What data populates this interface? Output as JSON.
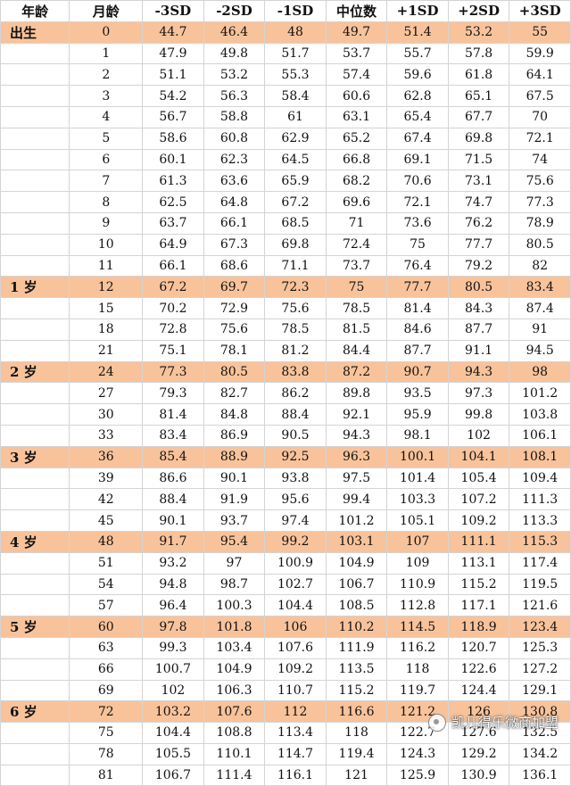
{
  "headers": [
    "年龄",
    "月龄",
    "-3SD",
    "-2SD",
    "-1SD",
    "中位数",
    "+1SD",
    "+2SD",
    "+3SD"
  ],
  "rows": [
    {
      "age": "出生",
      "month": "0",
      "values": [
        "44.7",
        "46.4",
        "48",
        "49.7",
        "51.4",
        "53.2",
        "55"
      ],
      "highlight": true
    },
    {
      "age": "",
      "month": "1",
      "values": [
        "47.9",
        "49.8",
        "51.7",
        "53.7",
        "55.7",
        "57.8",
        "59.9"
      ],
      "highlight": false
    },
    {
      "age": "",
      "month": "2",
      "values": [
        "51.1",
        "53.2",
        "55.3",
        "57.4",
        "59.6",
        "61.8",
        "64.1"
      ],
      "highlight": false
    },
    {
      "age": "",
      "month": "3",
      "values": [
        "54.2",
        "56.3",
        "58.4",
        "60.6",
        "62.8",
        "65.1",
        "67.5"
      ],
      "highlight": false
    },
    {
      "age": "",
      "month": "4",
      "values": [
        "56.7",
        "58.8",
        "61",
        "63.1",
        "65.4",
        "67.7",
        "70"
      ],
      "highlight": false
    },
    {
      "age": "",
      "month": "5",
      "values": [
        "58.6",
        "60.8",
        "62.9",
        "65.2",
        "67.4",
        "69.8",
        "72.1"
      ],
      "highlight": false
    },
    {
      "age": "",
      "month": "6",
      "values": [
        "60.1",
        "62.3",
        "64.5",
        "66.8",
        "69.1",
        "71.5",
        "74"
      ],
      "highlight": false
    },
    {
      "age": "",
      "month": "7",
      "values": [
        "61.3",
        "63.6",
        "65.9",
        "68.2",
        "70.6",
        "73.1",
        "75.6"
      ],
      "highlight": false
    },
    {
      "age": "",
      "month": "8",
      "values": [
        "62.5",
        "64.8",
        "67.2",
        "69.6",
        "72.1",
        "74.7",
        "77.3"
      ],
      "highlight": false
    },
    {
      "age": "",
      "month": "9",
      "values": [
        "63.7",
        "66.1",
        "68.5",
        "71",
        "73.6",
        "76.2",
        "78.9"
      ],
      "highlight": false
    },
    {
      "age": "",
      "month": "10",
      "values": [
        "64.9",
        "67.3",
        "69.8",
        "72.4",
        "75",
        "77.7",
        "80.5"
      ],
      "highlight": false
    },
    {
      "age": "",
      "month": "11",
      "values": [
        "66.1",
        "68.6",
        "71.1",
        "73.7",
        "76.4",
        "79.2",
        "82"
      ],
      "highlight": false
    },
    {
      "age": "1 岁",
      "month": "12",
      "values": [
        "67.2",
        "69.7",
        "72.3",
        "75",
        "77.7",
        "80.5",
        "83.4"
      ],
      "highlight": true
    },
    {
      "age": "",
      "month": "15",
      "values": [
        "70.2",
        "72.9",
        "75.6",
        "78.5",
        "81.4",
        "84.3",
        "87.4"
      ],
      "highlight": false
    },
    {
      "age": "",
      "month": "18",
      "values": [
        "72.8",
        "75.6",
        "78.5",
        "81.5",
        "84.6",
        "87.7",
        "91"
      ],
      "highlight": false
    },
    {
      "age": "",
      "month": "21",
      "values": [
        "75.1",
        "78.1",
        "81.2",
        "84.4",
        "87.7",
        "91.1",
        "94.5"
      ],
      "highlight": false
    },
    {
      "age": "2 岁",
      "month": "24",
      "values": [
        "77.3",
        "80.5",
        "83.8",
        "87.2",
        "90.7",
        "94.3",
        "98"
      ],
      "highlight": true
    },
    {
      "age": "",
      "month": "27",
      "values": [
        "79.3",
        "82.7",
        "86.2",
        "89.8",
        "93.5",
        "97.3",
        "101.2"
      ],
      "highlight": false
    },
    {
      "age": "",
      "month": "30",
      "values": [
        "81.4",
        "84.8",
        "88.4",
        "92.1",
        "95.9",
        "99.8",
        "103.8"
      ],
      "highlight": false
    },
    {
      "age": "",
      "month": "33",
      "values": [
        "83.4",
        "86.9",
        "90.5",
        "94.3",
        "98.1",
        "102",
        "106.1"
      ],
      "highlight": false
    },
    {
      "age": "3 岁",
      "month": "36",
      "values": [
        "85.4",
        "88.9",
        "92.5",
        "96.3",
        "100.1",
        "104.1",
        "108.1"
      ],
      "highlight": true
    },
    {
      "age": "",
      "month": "39",
      "values": [
        "86.6",
        "90.1",
        "93.8",
        "97.5",
        "101.4",
        "105.4",
        "109.4"
      ],
      "highlight": false
    },
    {
      "age": "",
      "month": "42",
      "values": [
        "88.4",
        "91.9",
        "95.6",
        "99.4",
        "103.3",
        "107.2",
        "111.3"
      ],
      "highlight": false
    },
    {
      "age": "",
      "month": "45",
      "values": [
        "90.1",
        "93.7",
        "97.4",
        "101.2",
        "105.1",
        "109.2",
        "113.3"
      ],
      "highlight": false
    },
    {
      "age": "4 岁",
      "month": "48",
      "values": [
        "91.7",
        "95.4",
        "99.2",
        "103.1",
        "107",
        "111.1",
        "115.3"
      ],
      "highlight": true
    },
    {
      "age": "",
      "month": "51",
      "values": [
        "93.2",
        "97",
        "100.9",
        "104.9",
        "109",
        "113.1",
        "117.4"
      ],
      "highlight": false
    },
    {
      "age": "",
      "month": "54",
      "values": [
        "94.8",
        "98.7",
        "102.7",
        "106.7",
        "110.9",
        "115.2",
        "119.5"
      ],
      "highlight": false
    },
    {
      "age": "",
      "month": "57",
      "values": [
        "96.4",
        "100.3",
        "104.4",
        "108.5",
        "112.8",
        "117.1",
        "121.6"
      ],
      "highlight": false
    },
    {
      "age": "5 岁",
      "month": "60",
      "values": [
        "97.8",
        "101.8",
        "106",
        "110.2",
        "114.5",
        "118.9",
        "123.4"
      ],
      "highlight": true
    },
    {
      "age": "",
      "month": "63",
      "values": [
        "99.3",
        "103.4",
        "107.6",
        "111.9",
        "116.2",
        "120.7",
        "125.3"
      ],
      "highlight": false
    },
    {
      "age": "",
      "month": "66",
      "values": [
        "100.7",
        "104.9",
        "109.2",
        "113.5",
        "118",
        "122.6",
        "127.2"
      ],
      "highlight": false
    },
    {
      "age": "",
      "month": "69",
      "values": [
        "102",
        "106.3",
        "110.7",
        "115.2",
        "119.7",
        "124.4",
        "129.1"
      ],
      "highlight": false
    },
    {
      "age": "6 岁",
      "month": "72",
      "values": [
        "103.2",
        "107.6",
        "112",
        "116.6",
        "121.2",
        "126",
        "130.8"
      ],
      "highlight": true
    },
    {
      "age": "",
      "month": "75",
      "values": [
        "104.4",
        "108.8",
        "113.4",
        "118",
        "122.7",
        "127.6",
        "132.5"
      ],
      "highlight": false
    },
    {
      "age": "",
      "month": "78",
      "values": [
        "105.5",
        "110.1",
        "114.7",
        "119.4",
        "124.3",
        "129.2",
        "134.2"
      ],
      "highlight": false
    },
    {
      "age": "",
      "month": "81",
      "values": [
        "106.7",
        "111.4",
        "116.1",
        "121",
        "125.9",
        "130.9",
        "136.1"
      ],
      "highlight": false
    }
  ],
  "watermark": {
    "text": "凯儿得乐微商加盟",
    "icon": "wechat-icon"
  },
  "colors": {
    "highlight_row": "#f8c39b",
    "grid": "#d4d4d4"
  }
}
